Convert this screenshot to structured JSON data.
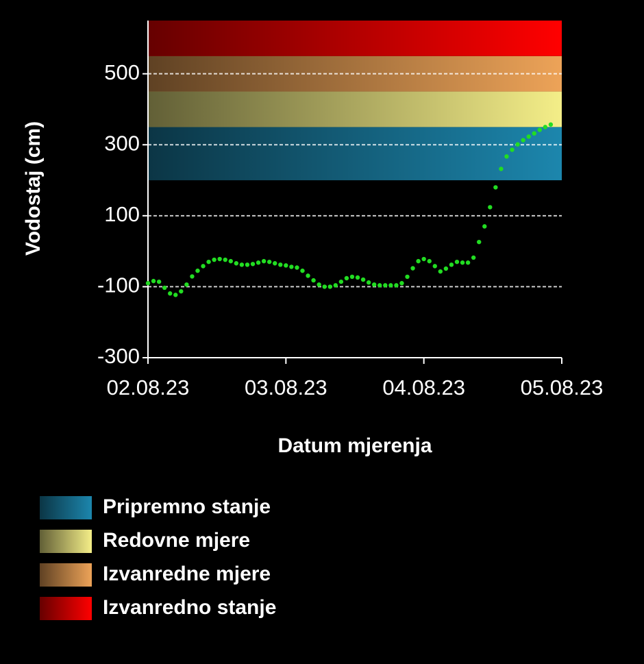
{
  "chart_data": {
    "type": "scatter",
    "y_label": "Vodostaj (cm)",
    "x_label": "Datum mjerenja",
    "xlim": [
      0,
      3
    ],
    "xticks": [
      {
        "value": 0,
        "label": "02.08.23"
      },
      {
        "value": 1,
        "label": "03.08.23"
      },
      {
        "value": 2,
        "label": "04.08.23"
      },
      {
        "value": 3,
        "label": "05.08.23"
      }
    ],
    "ylim": [
      -300,
      650
    ],
    "yticks": [
      -300,
      -100,
      100,
      300,
      500
    ],
    "grid": true,
    "bands": [
      {
        "name": "Pripremno stanje",
        "range": [
          200,
          350
        ],
        "color": "#1c86ad"
      },
      {
        "name": "Redovne mjere",
        "range": [
          350,
          450
        ],
        "color": "#f4ee88"
      },
      {
        "name": "Izvanredne mjere",
        "range": [
          450,
          550
        ],
        "color": "#eda358"
      },
      {
        "name": "Izvanredno stanje",
        "range": [
          550,
          650
        ],
        "color": "#ff0000"
      }
    ],
    "series": [
      {
        "color": "#22dd22",
        "x": [
          0,
          0.04,
          0.08,
          0.12,
          0.16,
          0.2,
          0.24,
          0.28,
          0.32,
          0.36,
          0.4,
          0.44,
          0.48,
          0.52,
          0.56,
          0.6,
          0.64,
          0.68,
          0.72,
          0.76,
          0.8,
          0.84,
          0.88,
          0.92,
          0.96,
          1,
          1.04,
          1.08,
          1.12,
          1.16,
          1.2,
          1.24,
          1.28,
          1.32,
          1.36,
          1.4,
          1.44,
          1.48,
          1.52,
          1.56,
          1.6,
          1.64,
          1.68,
          1.72,
          1.76,
          1.8,
          1.84,
          1.88,
          1.92,
          1.96,
          2,
          2.04,
          2.08,
          2.12,
          2.16,
          2.2,
          2.24,
          2.28,
          2.32,
          2.36,
          2.4,
          2.44,
          2.48,
          2.52,
          2.56,
          2.6,
          2.64,
          2.68,
          2.72,
          2.76,
          2.8,
          2.84,
          2.88,
          2.92
        ],
        "values": [
          -90,
          -84,
          -86,
          -103,
          -119,
          -123,
          -113,
          -94,
          -71,
          -55,
          -42,
          -30,
          -24,
          -22,
          -24,
          -28,
          -34,
          -38,
          -38,
          -36,
          -32,
          -28,
          -30,
          -34,
          -38,
          -40,
          -44,
          -46,
          -55,
          -69,
          -82,
          -94,
          -100,
          -100,
          -96,
          -86,
          -76,
          -72,
          -74,
          -80,
          -88,
          -94,
          -96,
          -96,
          -96,
          -96,
          -90,
          -72,
          -48,
          -28,
          -22,
          -28,
          -42,
          -57,
          -49,
          -38,
          -30,
          -32,
          -32,
          -18,
          26,
          70,
          124,
          180,
          232,
          267,
          286,
          301,
          313,
          323,
          332,
          342,
          350,
          357
        ]
      }
    ]
  }
}
